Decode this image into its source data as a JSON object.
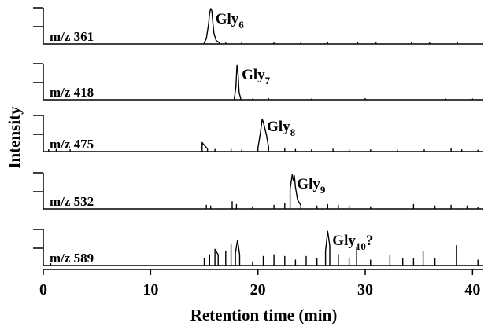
{
  "chart_data": {
    "type": "line",
    "xlabel": "Retention time (min)",
    "ylabel": "Intensity",
    "xlim": [
      0,
      41
    ],
    "xticks": [
      0,
      10,
      20,
      30,
      40
    ],
    "tick_labels": [
      "0",
      "10",
      "20",
      "30",
      "40"
    ],
    "series": [
      {
        "name": "m/z 361",
        "peak_label": {
          "base": "Gly",
          "sub": "6",
          "suffix": ""
        },
        "ylim": [
          0,
          1
        ],
        "x": [
          15.0,
          15.2,
          15.4,
          15.5,
          15.6,
          15.7,
          15.8,
          15.9,
          16.1,
          16.4,
          17.0,
          18.5,
          21.5,
          24.0,
          26.5,
          29.3,
          31.0,
          34.3,
          36.0,
          38.6
        ],
        "y": [
          0.03,
          0.15,
          0.55,
          0.85,
          0.98,
          0.92,
          0.6,
          0.3,
          0.1,
          0.04,
          0.03,
          0.04,
          0.03,
          0.03,
          0.04,
          0.03,
          0.03,
          0.05,
          0.03,
          0.03
        ]
      },
      {
        "name": "m/z 418",
        "peak_label": {
          "base": "Gly",
          "sub": "7",
          "suffix": ""
        },
        "ylim": [
          0,
          1
        ],
        "x": [
          17.8,
          17.95,
          18.05,
          18.15,
          18.25,
          18.4,
          19.5,
          21.0,
          25.0,
          30.0,
          37.5,
          40.0
        ],
        "y": [
          0.03,
          0.35,
          0.95,
          0.7,
          0.2,
          0.03,
          0.02,
          0.03,
          0.02,
          0.03,
          0.02,
          0.02
        ]
      },
      {
        "name": "m/z 475",
        "peak_label": {
          "base": "Gly",
          "sub": "8",
          "suffix": ""
        },
        "ylim": [
          0,
          1
        ],
        "x": [
          0.5,
          1.2,
          2.5,
          14.8,
          15.0,
          15.3,
          16.0,
          17.5,
          18.5,
          20.0,
          20.2,
          20.4,
          20.5,
          20.6,
          20.8,
          21.0,
          22.5,
          23.5,
          25.0,
          27.0,
          28.5,
          30.5,
          33.0,
          35.5,
          38.0,
          39.0,
          40.5
        ],
        "y": [
          0.05,
          0.06,
          0.05,
          0.25,
          0.18,
          0.08,
          0.06,
          0.07,
          0.05,
          0.1,
          0.45,
          0.9,
          0.82,
          0.7,
          0.45,
          0.12,
          0.08,
          0.06,
          0.05,
          0.07,
          0.05,
          0.05,
          0.04,
          0.05,
          0.08,
          0.05,
          0.04
        ]
      },
      {
        "name": "m/z 532",
        "peak_label": {
          "base": "Gly",
          "sub": "9",
          "suffix": ""
        },
        "ylim": [
          0,
          1
        ],
        "x": [
          15.2,
          15.6,
          17.6,
          18.0,
          19.5,
          21.5,
          22.5,
          23.0,
          23.2,
          23.3,
          23.4,
          23.5,
          23.7,
          24.0,
          25.5,
          26.5,
          27.5,
          28.5,
          30.5,
          34.5,
          36.5,
          38.0,
          39.5,
          40.5
        ],
        "y": [
          0.1,
          0.08,
          0.2,
          0.12,
          0.06,
          0.1,
          0.15,
          0.55,
          0.95,
          0.78,
          0.92,
          0.6,
          0.25,
          0.1,
          0.08,
          0.12,
          0.1,
          0.08,
          0.06,
          0.12,
          0.08,
          0.1,
          0.08,
          0.05
        ]
      },
      {
        "name": "m/z 589",
        "peak_label": {
          "base": "Gly",
          "sub": "10",
          "suffix": "?"
        },
        "ylim": [
          0,
          1
        ],
        "x": [
          0.7,
          15.0,
          15.5,
          16.0,
          16.3,
          17.0,
          17.5,
          17.9,
          18.1,
          18.3,
          19.5,
          20.5,
          21.5,
          22.5,
          23.5,
          24.5,
          25.5,
          26.3,
          26.5,
          26.7,
          27.5,
          28.5,
          29.2,
          30.5,
          32.3,
          33.5,
          34.5,
          35.4,
          36.5,
          38.5,
          40.5
        ],
        "y": [
          0.05,
          0.2,
          0.3,
          0.45,
          0.3,
          0.4,
          0.6,
          0.35,
          0.7,
          0.3,
          0.1,
          0.25,
          0.3,
          0.25,
          0.15,
          0.25,
          0.2,
          0.4,
          0.95,
          0.55,
          0.3,
          0.2,
          0.5,
          0.15,
          0.3,
          0.2,
          0.2,
          0.4,
          0.2,
          0.55,
          0.15
        ]
      }
    ]
  }
}
